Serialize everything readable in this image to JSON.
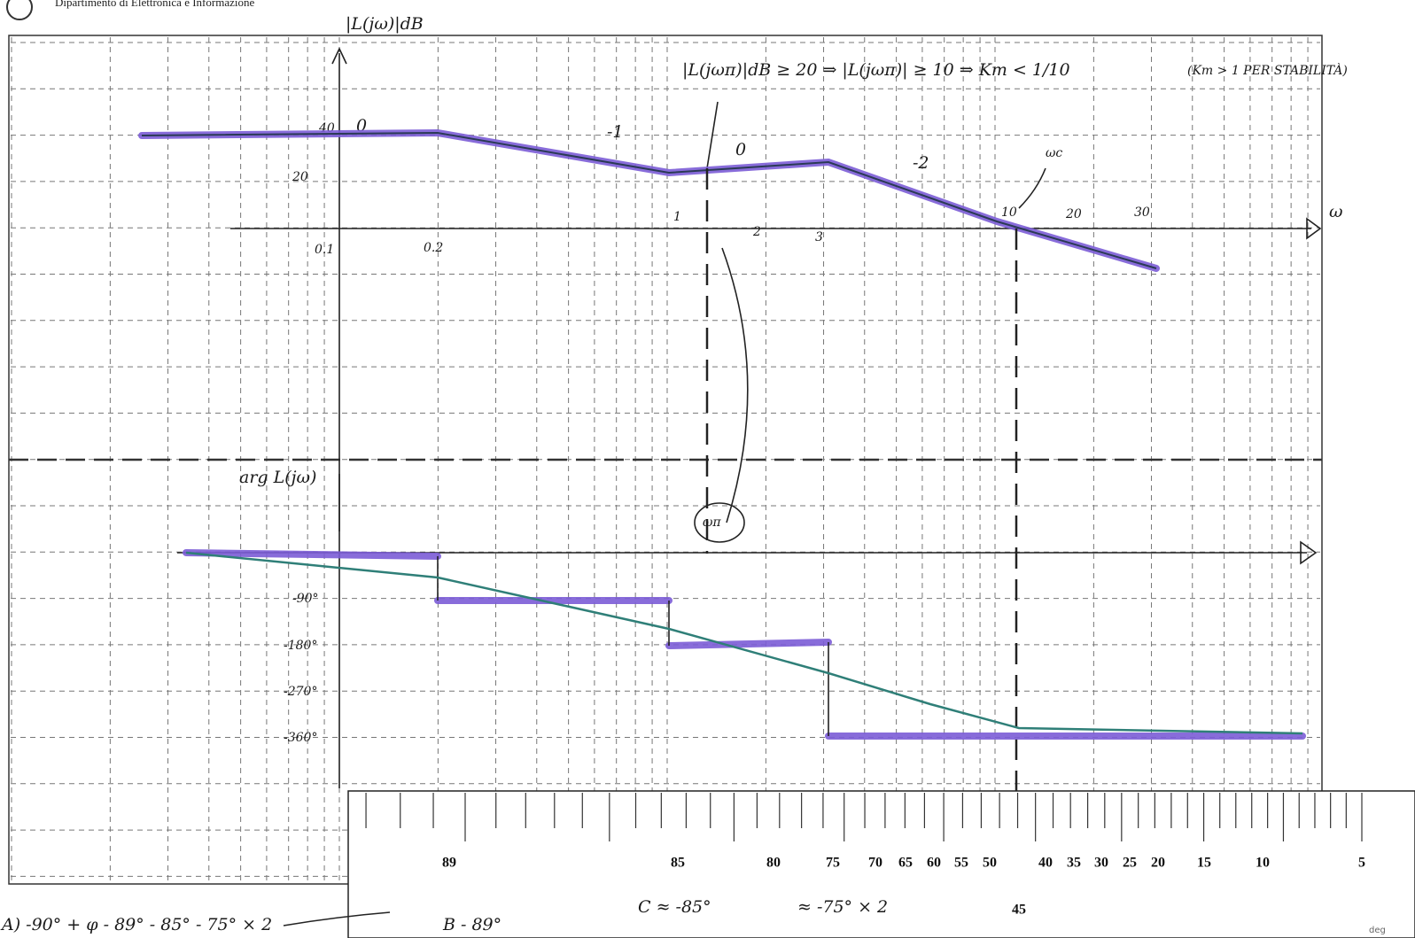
{
  "header": {
    "department": "Dipartimento di Elettronica e Informazione"
  },
  "magnitude": {
    "axis_label": "|L(jω)|dB",
    "ticks": [
      "40",
      "20"
    ],
    "freq_ticks": [
      "0.1",
      "0.2",
      "1",
      "2",
      "3",
      "10",
      "20",
      "30"
    ],
    "freq_axis_label": "ω",
    "slopes": [
      "0",
      "-1",
      "0",
      "-2"
    ],
    "crossover": "ωc",
    "condition": "|L(jωπ)|dB ≥ 20 ⇒ |L(jωπ)| ≥ 10 ⇒ Km < 1/10",
    "stability": "(Km > 1 PER STABILITÀ)"
  },
  "phase": {
    "axis_label": "arg L(jω)",
    "ticks": [
      "-90°",
      "-180°",
      "-270°",
      "-360°"
    ],
    "omega_pi": "ωπ"
  },
  "notes": {
    "sum": "A) -90° + φ - 89° - 85° - 75° × 2",
    "b": "B - 89°",
    "c": "C ≈ -85°",
    "d": "≈ -75° × 2"
  },
  "ruler": {
    "labels": [
      "89",
      "85",
      "80",
      "75",
      "70",
      "65",
      "60",
      "55",
      "50",
      "45",
      "40",
      "35",
      "30",
      "25",
      "20",
      "15",
      "10",
      "5"
    ],
    "unit": "deg"
  }
}
